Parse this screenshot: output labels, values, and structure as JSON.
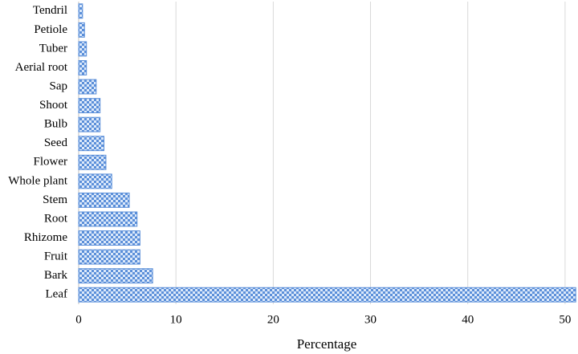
{
  "chart_data": {
    "type": "bar",
    "orientation": "horizontal",
    "x_label": "Percentage",
    "categories": [
      "Tendril",
      "Petiole",
      "Tuber",
      "Aerial root",
      "Sap",
      "Shoot",
      "Bulb",
      "Seed",
      "Flower",
      "Whole plant",
      "Stem",
      "Root",
      "Rhizome",
      "Fruit",
      "Bark",
      "Leaf"
    ],
    "values": [
      0.4,
      0.6,
      0.8,
      0.8,
      1.8,
      2.2,
      2.2,
      2.6,
      2.8,
      3.4,
      5.2,
      6.0,
      6.3,
      6.3,
      7.6,
      51.1
    ],
    "color": "#5b8fd9",
    "xlim": [
      0,
      51
    ],
    "xticks": [
      0,
      10,
      20,
      30,
      40,
      50
    ],
    "grid": true
  }
}
